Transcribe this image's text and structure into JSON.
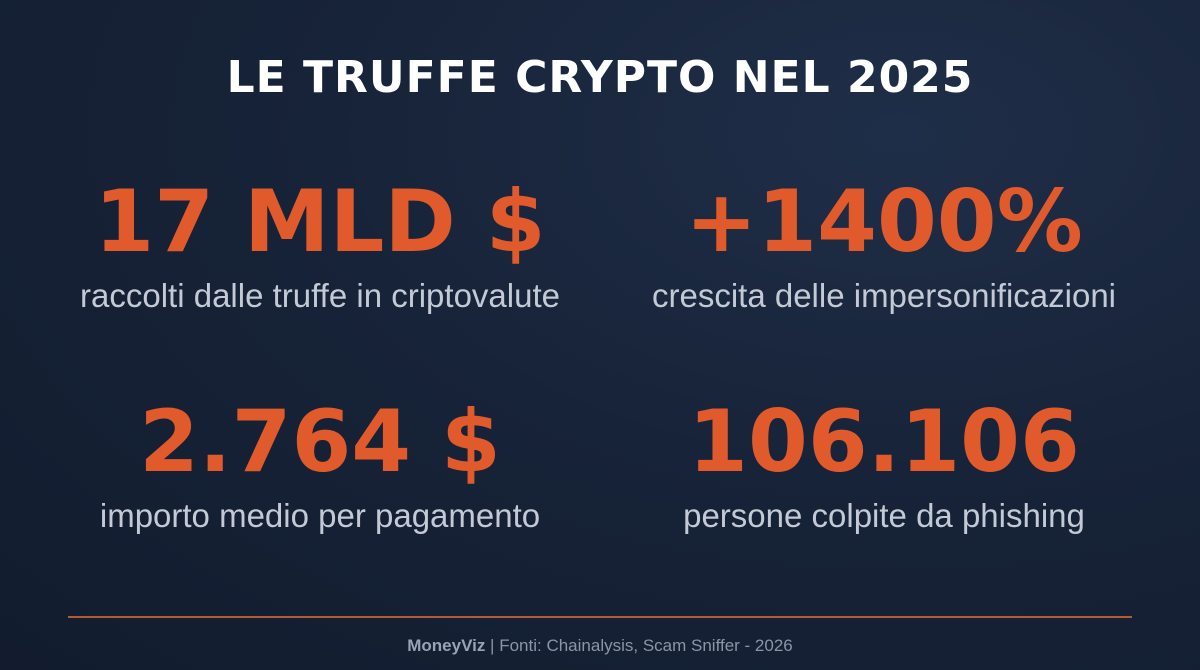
{
  "title": "LE TRUFFE CRYPTO NEL 2025",
  "stats": [
    {
      "value": "17 MLD $",
      "caption": "raccolti dalle truffe in criptovalute"
    },
    {
      "value": "+1400%",
      "caption": "crescita delle impersonificazioni"
    },
    {
      "value": "2.764 $",
      "caption": "importo medio per pagamento"
    },
    {
      "value": "106.106",
      "caption": "persone colpite da phishing"
    }
  ],
  "footer": {
    "brand": "MoneyViz",
    "separator": " | ",
    "sources": "Fonti: Chainalysis, Scam Sniffer - 2026"
  },
  "colors": {
    "accent": "#e05a2b",
    "background": "#172338",
    "text": "#ffffff",
    "caption": "#c3cad6"
  }
}
